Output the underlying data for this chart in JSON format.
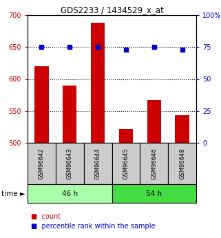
{
  "title": "GDS2233 / 1434529_x_at",
  "categories": [
    "GSM96642",
    "GSM96643",
    "GSM96644",
    "GSM96645",
    "GSM96646",
    "GSM96648"
  ],
  "bar_values": [
    620,
    590,
    688,
    522,
    567,
    543
  ],
  "dot_values": [
    75,
    75,
    75,
    73,
    75,
    73
  ],
  "bar_color": "#cc0000",
  "dot_color": "#0000cc",
  "ylim_left": [
    500,
    700
  ],
  "ylim_right": [
    0,
    100
  ],
  "yticks_left": [
    500,
    550,
    600,
    650,
    700
  ],
  "yticks_right": [
    0,
    25,
    50,
    75,
    100
  ],
  "grid_values": [
    550,
    600,
    650
  ],
  "groups": [
    {
      "label": "46 h",
      "indices": [
        0,
        1,
        2
      ],
      "color": "#aaffaa"
    },
    {
      "label": "54 h",
      "indices": [
        3,
        4,
        5
      ],
      "color": "#44dd44"
    }
  ],
  "time_label": "time",
  "legend_items": [
    {
      "label": "count",
      "color": "#cc0000"
    },
    {
      "label": "percentile rank within the sample",
      "color": "#0000cc"
    }
  ],
  "bar_bottom": 500,
  "bar_width": 0.5,
  "sample_box_color": "#cccccc",
  "fig_width": 3.21,
  "fig_height": 3.45,
  "dpi": 100
}
